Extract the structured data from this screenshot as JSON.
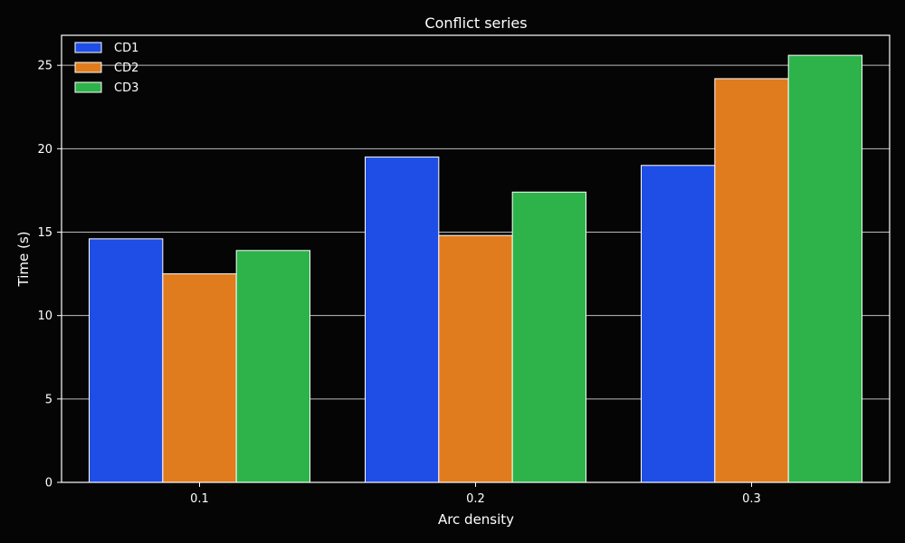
{
  "colors": {
    "background": "#050505",
    "foreground": "#ffffff",
    "grid": "#bdbdbd",
    "bar_edge": "#ffffff"
  },
  "chart_data": {
    "type": "bar",
    "title": "Conflict series",
    "xlabel": "Arc density",
    "ylabel": "Time (s)",
    "categories": [
      "0.1",
      "0.2",
      "0.3"
    ],
    "ylim": [
      0,
      26.8
    ],
    "yticks": [
      0,
      5,
      10,
      15,
      20,
      25
    ],
    "grid": "y",
    "legend_position": "top-left",
    "series": [
      {
        "name": "CD1",
        "color": "#1f4ee6",
        "values": [
          14.6,
          19.5,
          19.0
        ]
      },
      {
        "name": "CD2",
        "color": "#e07c1e",
        "values": [
          12.5,
          14.8,
          24.2
        ]
      },
      {
        "name": "CD3",
        "color": "#2db34a",
        "values": [
          13.9,
          17.4,
          25.6
        ]
      }
    ]
  }
}
